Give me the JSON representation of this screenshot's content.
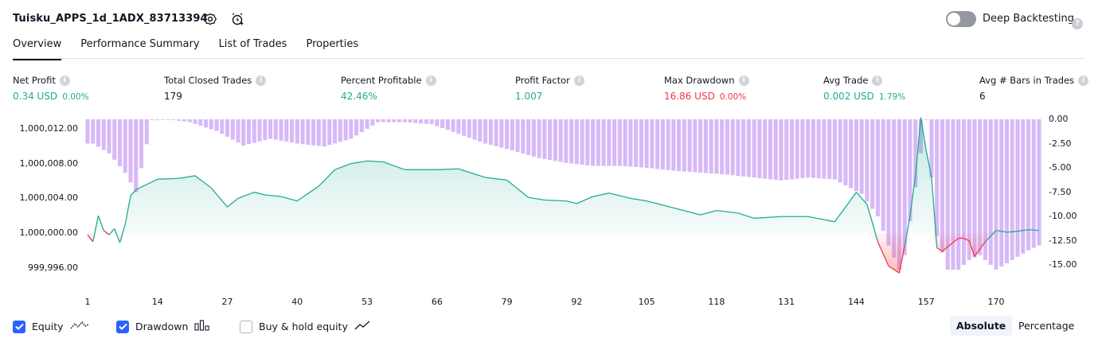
{
  "header": {
    "title": "Tuisku_APPS_1d_1ADX_83713394",
    "deep_backtesting_label": "Deep Backtesting"
  },
  "tabs": [
    {
      "label": "Overview"
    },
    {
      "label": "Performance Summary"
    },
    {
      "label": "List of Trades"
    },
    {
      "label": "Properties"
    }
  ],
  "metrics": {
    "net_profit": {
      "label": "Net Profit",
      "value": "0.34 USD",
      "pct": "0.00%"
    },
    "total_closed_trades": {
      "label": "Total Closed Trades",
      "value": "179"
    },
    "percent_profitable": {
      "label": "Percent Profitable",
      "value": "42.46%"
    },
    "profit_factor": {
      "label": "Profit Factor",
      "value": "1.007"
    },
    "max_drawdown": {
      "label": "Max Drawdown",
      "value": "16.86 USD",
      "pct": "0.00%"
    },
    "avg_trade": {
      "label": "Avg Trade",
      "value": "0.002 USD",
      "pct": "1.79%"
    },
    "avg_bars": {
      "label": "Avg # Bars in Trades",
      "value": "6"
    }
  },
  "chart_data": {
    "type": "line",
    "left_axis_ticks": [
      "1,000,012.00",
      "1,000,008.00",
      "1,000,004.00",
      "1,000,000.00",
      "999,996.00"
    ],
    "right_axis_ticks": [
      "0.00",
      "-2.50",
      "-5.00",
      "-7.50",
      "-10.00",
      "-12.50",
      "-15.00"
    ],
    "x_ticks": [
      "1",
      "14",
      "27",
      "40",
      "53",
      "66",
      "79",
      "92",
      "105",
      "118",
      "131",
      "144",
      "157",
      "170"
    ],
    "equity_x": [
      1,
      2,
      3,
      4,
      5,
      6,
      7,
      8,
      9,
      10,
      14,
      18,
      21,
      24,
      27,
      29,
      32,
      34,
      37,
      40,
      44,
      47,
      50,
      53,
      56,
      60,
      63,
      66,
      70,
      75,
      79,
      83,
      86,
      90,
      92,
      95,
      98,
      102,
      105,
      110,
      115,
      118,
      122,
      125,
      130,
      135,
      140,
      144,
      146,
      148,
      150,
      152,
      153,
      154,
      155,
      156,
      157,
      158,
      159,
      160,
      161,
      163,
      164,
      165,
      166,
      168,
      170,
      172,
      174,
      176,
      178
    ],
    "equity_values": [
      999999.8,
      999999.0,
      1000002.0,
      1000000.3,
      999999.8,
      1000000.5,
      999998.9,
      1000001.0,
      1000004.3,
      1000005.0,
      1000006.2,
      1000006.3,
      1000006.6,
      1000005.2,
      1000003.0,
      1000004.0,
      1000004.7,
      1000004.4,
      1000004.2,
      1000003.7,
      1000005.4,
      1000007.3,
      1000008.0,
      1000008.3,
      1000008.2,
      1000007.3,
      1000007.3,
      1000007.3,
      1000007.4,
      1000006.4,
      1000006.1,
      1000004.1,
      1000003.8,
      1000003.7,
      1000003.4,
      1000004.2,
      1000004.6,
      1000004.0,
      1000003.7,
      1000002.9,
      1000002.1,
      1000002.6,
      1000002.3,
      1000001.7,
      1000001.9,
      1000001.9,
      1000001.3,
      1000004.7,
      1000003.3,
      999999.0,
      999996.2,
      999995.4,
      999998.5,
      1000002.0,
      1000006.6,
      1000013.3,
      1000009.5,
      1000006.4,
      999998.3,
      999997.9,
      999998.4,
      999999.4,
      999999.4,
      999999.1,
      999997.3,
      999999.0,
      1000000.3,
      1000000.1,
      1000000.2,
      1000000.4,
      1000000.3
    ],
    "drawdown_x": [
      2,
      5,
      8,
      10,
      13,
      16,
      20,
      25,
      30,
      35,
      40,
      45,
      50,
      55,
      60,
      65,
      70,
      75,
      80,
      85,
      90,
      95,
      100,
      105,
      110,
      115,
      120,
      125,
      130,
      135,
      140,
      145,
      148,
      150,
      152,
      153,
      155,
      157,
      159,
      161,
      163,
      165,
      167,
      170,
      173,
      176,
      178
    ],
    "drawdown_values": [
      -2.5,
      -3.5,
      -5.5,
      -7.5,
      -0.1,
      0.0,
      -0.3,
      -1.2,
      -2.7,
      -2.0,
      -2.5,
      -2.8,
      -2.0,
      -0.3,
      -0.3,
      -0.5,
      -1.5,
      -2.5,
      -3.2,
      -4.0,
      -4.5,
      -4.8,
      -4.8,
      -5.0,
      -5.3,
      -5.5,
      -5.7,
      -6.0,
      -6.3,
      -6.0,
      -6.2,
      -7.7,
      -10.0,
      -13.0,
      -15.5,
      -14.0,
      -7.0,
      0.0,
      -12.0,
      -15.5,
      -15.5,
      -14.5,
      -14.0,
      -15.5,
      -14.5,
      -13.5,
      -13.0
    ],
    "equity_ylim": [
      999994.0,
      1000013.6
    ],
    "drawdown_ylim": [
      -16.9,
      0.6
    ],
    "legend": [
      "Equity",
      "Drawdown",
      "Buy & hold equity"
    ],
    "colors": {
      "equity_line": "#22ab94",
      "equity_negative": "#f23645",
      "equity_fill": "#22ab94",
      "drawdown_bars": "#d8b9f7"
    }
  },
  "legend": {
    "equity": "Equity",
    "drawdown": "Drawdown",
    "buy_hold": "Buy & hold equity",
    "equity_checked": true,
    "drawdown_checked": true,
    "buy_hold_checked": false
  },
  "scale": {
    "absolute": "Absolute",
    "percentage": "Percentage",
    "selected": "Absolute"
  }
}
